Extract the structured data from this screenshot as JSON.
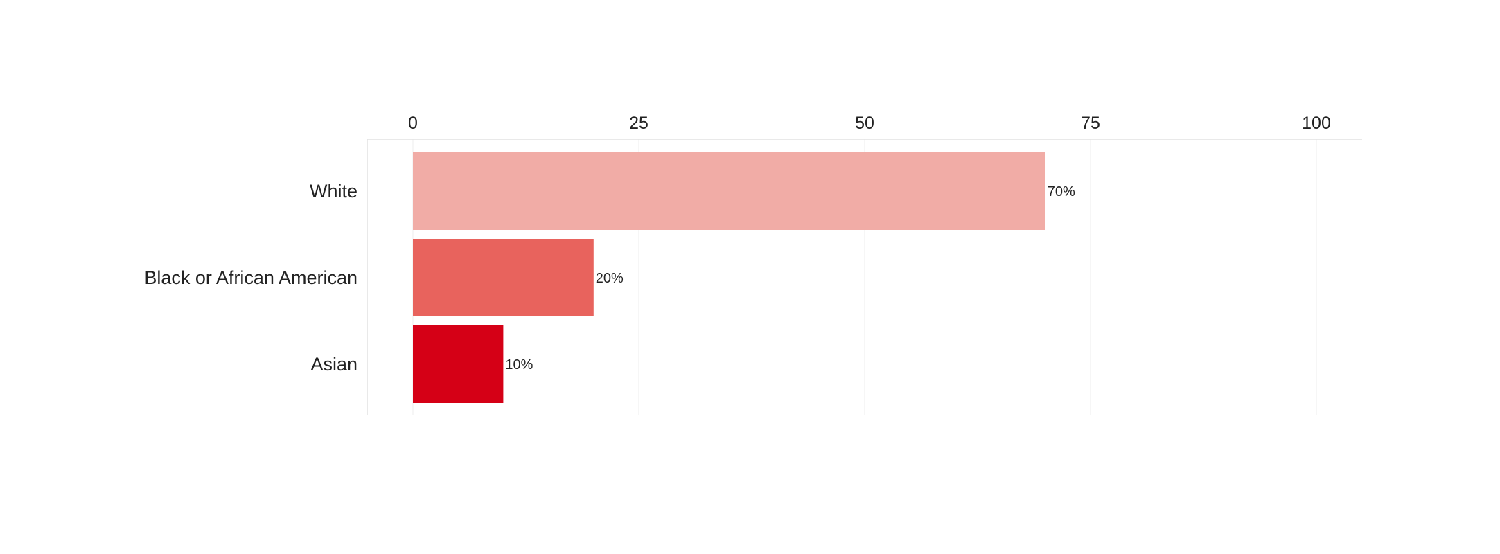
{
  "chart_data": {
    "type": "bar",
    "orientation": "horizontal",
    "title": "",
    "xlabel": "",
    "ylabel": "",
    "categories": [
      "White",
      "Black or African American",
      "Asian"
    ],
    "values": [
      70,
      20,
      10
    ],
    "data_labels": [
      "70%",
      "20%",
      "10%"
    ],
    "colors": [
      "#f1aca6",
      "#e8635d",
      "#d50016"
    ],
    "xlim": [
      0,
      100
    ],
    "xticks": [
      0,
      25,
      50,
      75,
      100
    ],
    "xtick_labels": [
      "0",
      "25",
      "50",
      "75",
      "100"
    ],
    "x_axis_position": "top",
    "grid": true,
    "legend": "none"
  }
}
